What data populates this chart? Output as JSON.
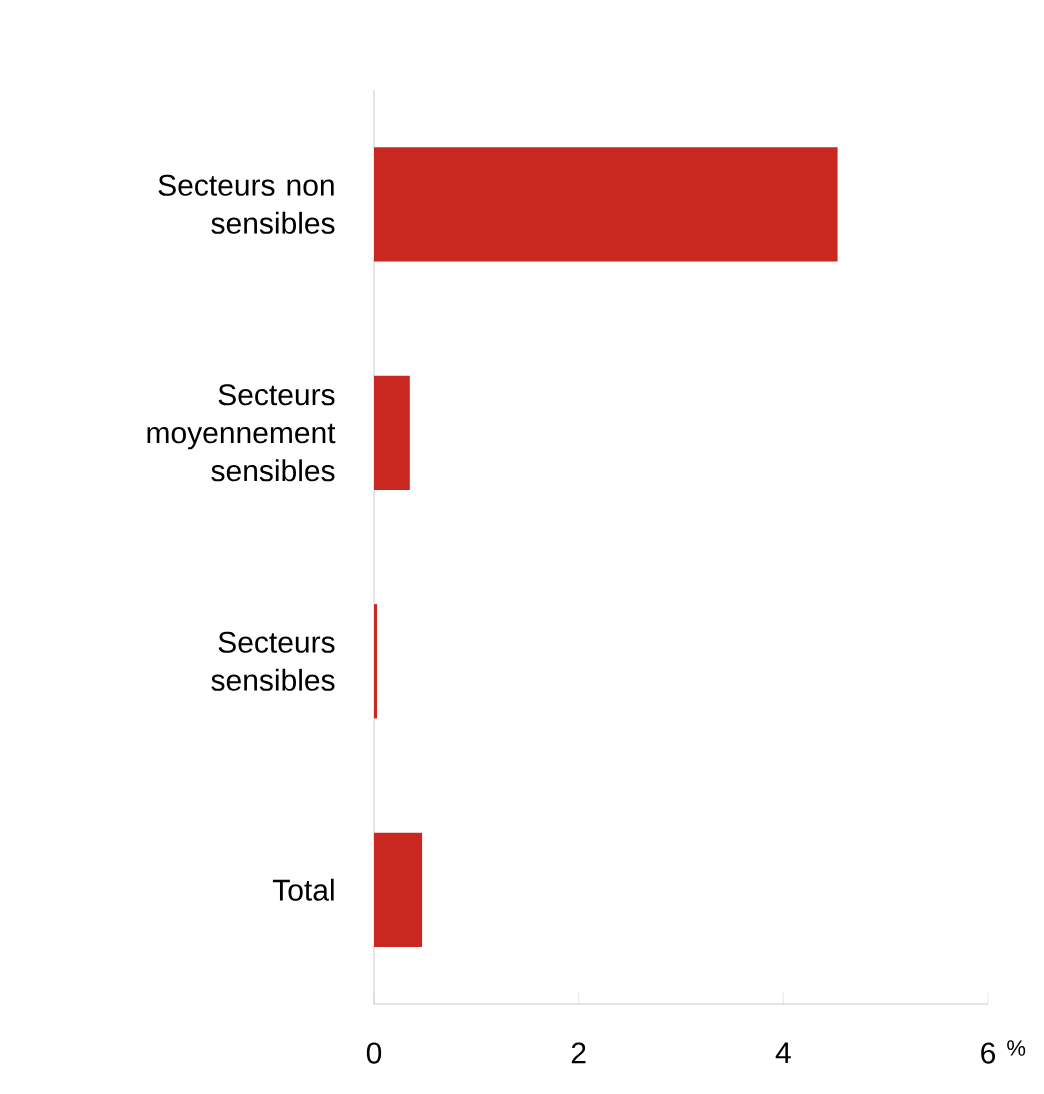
{
  "chart_data": {
    "type": "bar",
    "orientation": "horizontal",
    "categories": [
      "Secteurs non sensibles",
      "Secteurs moyennement sensibles",
      "Secteurs sensibles",
      "Total"
    ],
    "values": [
      4.53,
      0.35,
      0.03,
      0.47
    ],
    "color": "#c8281f",
    "xlim": [
      0,
      6
    ],
    "xticks": [
      0,
      2,
      4,
      6
    ],
    "xlabel": "%"
  }
}
